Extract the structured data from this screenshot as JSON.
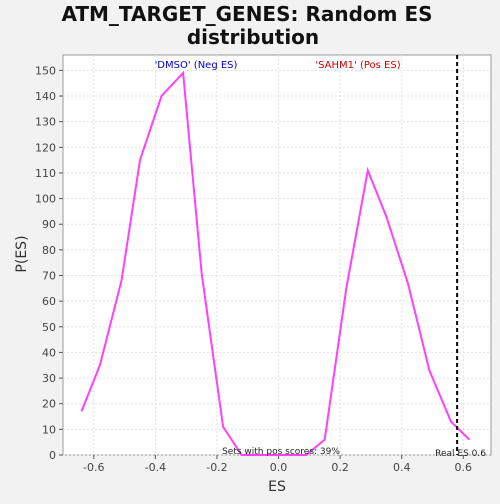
{
  "chart_data": {
    "type": "line",
    "title_line1": "ATM_TARGET_GENES: Random ES",
    "title_line2": "distribution",
    "xlabel": "ES",
    "ylabel": "P(ES)",
    "xlim": [
      -0.7,
      0.69
    ],
    "ylim": [
      0,
      156
    ],
    "x_ticks": [
      -0.6,
      -0.4,
      -0.2,
      0.0,
      0.2,
      0.4,
      0.6
    ],
    "x_tick_labels": [
      "-0.6",
      "-0.4",
      "-0.2",
      "0.0",
      "0.2",
      "0.4",
      "0.6"
    ],
    "y_ticks": [
      0,
      10,
      20,
      30,
      40,
      50,
      60,
      70,
      80,
      90,
      100,
      110,
      120,
      130,
      140,
      150
    ],
    "y_tick_labels": [
      "0",
      "10",
      "20",
      "30",
      "40",
      "50",
      "60",
      "70",
      "80",
      "90",
      "100",
      "110",
      "120",
      "130",
      "140",
      "150"
    ],
    "grid": true,
    "series": [
      {
        "color": "#ff40ff",
        "x": [
          -0.64,
          -0.58,
          -0.51,
          -0.45,
          -0.38,
          -0.31,
          -0.25,
          -0.18,
          -0.12,
          -0.05,
          0.02,
          0.09,
          0.15,
          0.22,
          0.29,
          0.35,
          0.42,
          0.49,
          0.56,
          0.62
        ],
        "y": [
          17,
          35,
          68,
          115,
          140,
          149,
          71,
          11,
          0,
          0,
          0,
          0,
          6,
          65,
          111,
          93,
          67,
          33,
          13,
          6
        ]
      }
    ],
    "real_es": 0.58,
    "real_es_color": "#000000",
    "annotations": {
      "neg_label": "'DMSO' (Neg ES)",
      "neg_color": "#0000cc",
      "pos_label": "'SAHM1' (Pos ES)",
      "pos_color": "#cc0000",
      "pos_scores_text": "Sets with pos scores: 39%",
      "real_es_text": "Real ES 0.6"
    }
  }
}
